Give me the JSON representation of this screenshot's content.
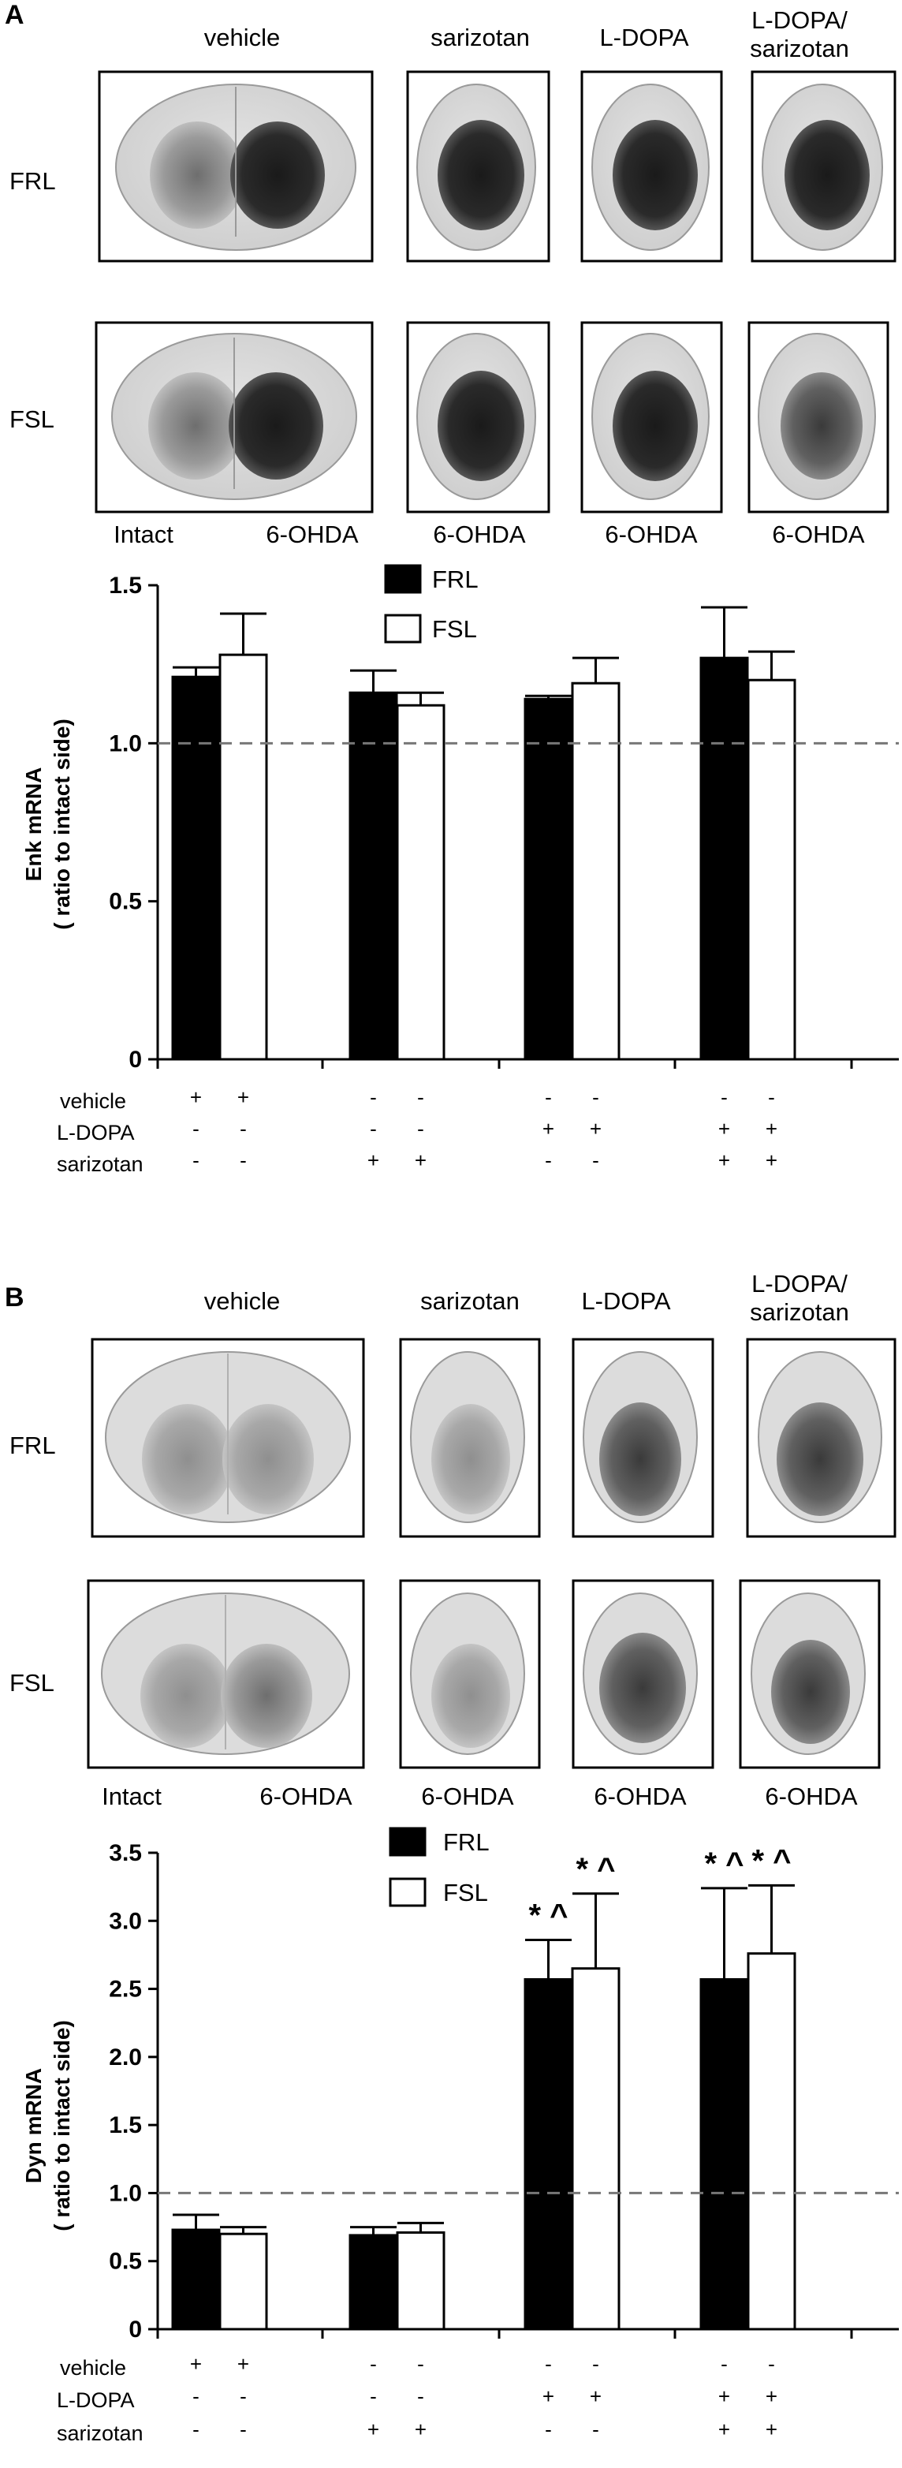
{
  "panels": [
    {
      "letter": "A",
      "column_labels": [
        "vehicle",
        "sarizotan",
        "L-DOPA",
        "L-DOPA/",
        "sarizotan"
      ],
      "row_labels": [
        "FRL",
        "FSL"
      ],
      "side_labels": [
        "Intact",
        "6-OHDA",
        "6-OHDA",
        "6-OHDA",
        "6-OHDA"
      ],
      "treatment_rows": [
        "vehicle",
        "L-DOPA",
        "sarizotan"
      ]
    },
    {
      "letter": "B",
      "column_labels": [
        "vehicle",
        "sarizotan",
        "L-DOPA",
        "L-DOPA/",
        "sarizotan"
      ],
      "row_labels": [
        "FRL",
        "FSL"
      ],
      "side_labels": [
        "Intact",
        "6-OHDA",
        "6-OHDA",
        "6-OHDA",
        "6-OHDA"
      ],
      "treatment_rows": [
        "vehicle",
        "L-DOPA",
        "sarizotan"
      ]
    }
  ],
  "chart_data": [
    {
      "type": "bar",
      "ylabel_line1": "Enk mRNA",
      "ylabel_line2": "( ratio to intact side)",
      "ylim": [
        0,
        1.5
      ],
      "yticks": [
        "0",
        "0.5",
        "1.0",
        "1.5"
      ],
      "reference_line": 1.0,
      "legend": [
        "FRL",
        "FSL"
      ],
      "legend_position": "top-center",
      "series": [
        {
          "name": "FRL",
          "color": "#000000",
          "values": [
            1.21,
            1.16,
            1.14,
            1.27
          ],
          "errors": [
            0.03,
            0.07,
            0.01,
            0.16
          ]
        },
        {
          "name": "FSL",
          "color": "#ffffff",
          "values": [
            1.28,
            1.12,
            1.19,
            1.2
          ],
          "errors": [
            0.13,
            0.04,
            0.08,
            0.09
          ]
        }
      ],
      "significance": [
        [
          "",
          ""
        ],
        [
          "",
          ""
        ],
        [
          "",
          ""
        ],
        [
          "",
          ""
        ]
      ],
      "treatment_table": {
        "vehicle": [
          "+",
          "+",
          "-",
          "-",
          "-",
          "-",
          "-",
          "-"
        ],
        "L-DOPA": [
          "-",
          "-",
          "-",
          "-",
          "+",
          "+",
          "+",
          "+"
        ],
        "sarizotan": [
          "-",
          "-",
          "+",
          "+",
          "-",
          "-",
          "+",
          "+"
        ]
      }
    },
    {
      "type": "bar",
      "ylabel_line1": "Dyn mRNA",
      "ylabel_line2": "( ratio to intact side)",
      "ylim": [
        0,
        3.5
      ],
      "yticks": [
        "0",
        "0.5",
        "1.0",
        "1.5",
        "2.0",
        "2.5",
        "3.0",
        "3.5"
      ],
      "reference_line": 1.0,
      "legend": [
        "FRL",
        "FSL"
      ],
      "legend_position": "top-center",
      "series": [
        {
          "name": "FRL",
          "color": "#000000",
          "values": [
            0.73,
            0.69,
            2.57,
            2.57
          ],
          "errors": [
            0.11,
            0.06,
            0.29,
            0.67
          ]
        },
        {
          "name": "FSL",
          "color": "#ffffff",
          "values": [
            0.7,
            0.71,
            2.65,
            2.76
          ],
          "errors": [
            0.05,
            0.07,
            0.55,
            0.5
          ]
        }
      ],
      "significance": [
        [
          "",
          ""
        ],
        [
          "",
          ""
        ],
        [
          "* ^",
          "* ^"
        ],
        [
          "* ^",
          "* ^"
        ]
      ],
      "treatment_table": {
        "vehicle": [
          "+",
          "+",
          "-",
          "-",
          "-",
          "-",
          "-",
          "-"
        ],
        "L-DOPA": [
          "-",
          "-",
          "-",
          "-",
          "+",
          "+",
          "+",
          "+"
        ],
        "sarizotan": [
          "-",
          "-",
          "+",
          "+",
          "-",
          "-",
          "+",
          "+"
        ]
      }
    }
  ]
}
